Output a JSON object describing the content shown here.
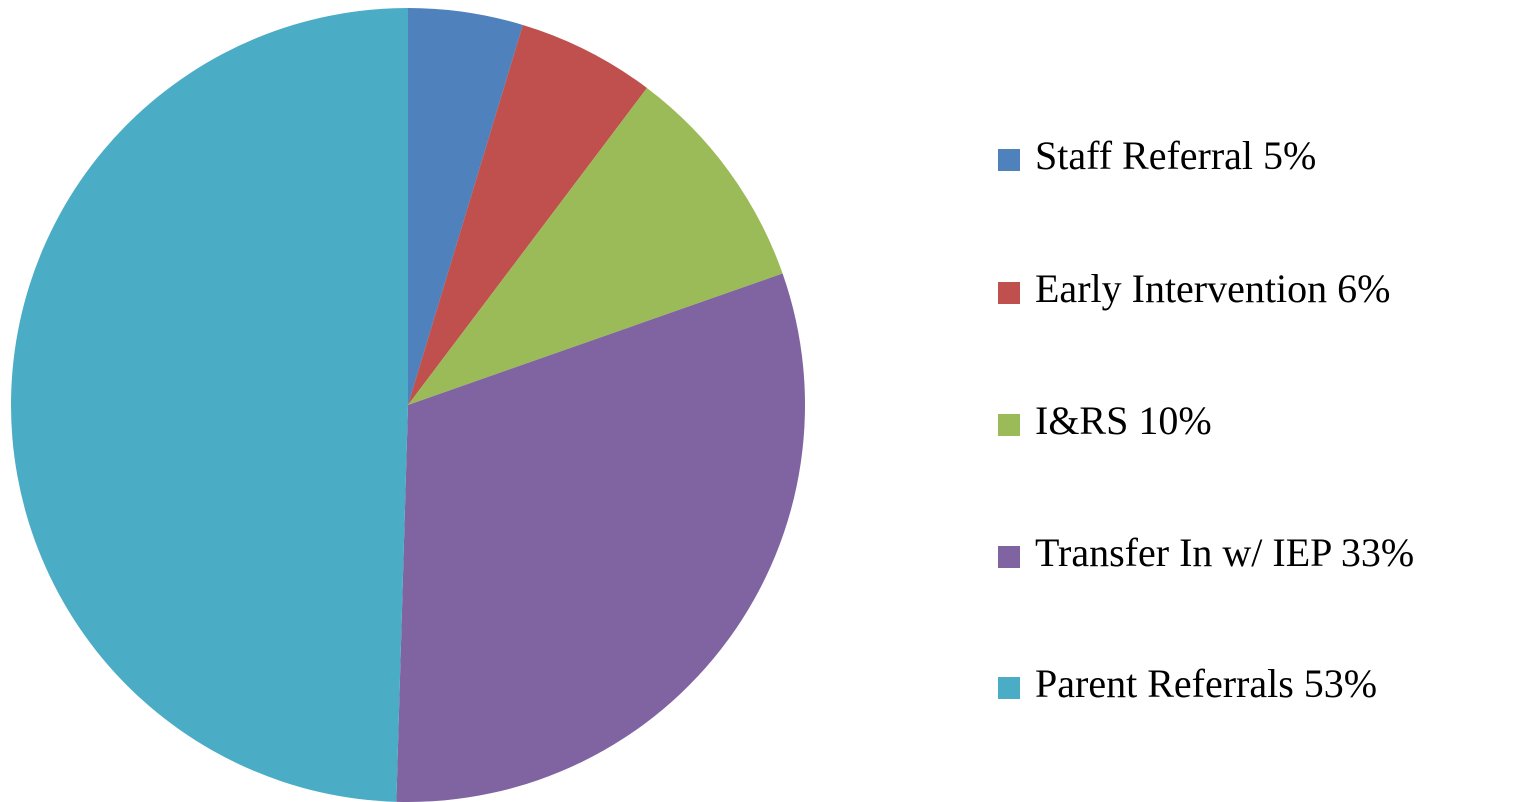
{
  "chart_data": {
    "type": "pie",
    "categories": [
      "Staff Referral 5%",
      "Early Intervention 6%",
      "I&RS 10%",
      "Transfer In w/ IEP 33%",
      "Parent Referrals 53%"
    ],
    "values": [
      5,
      6,
      10,
      33,
      53
    ],
    "colors": [
      "#4f81bd",
      "#c0504d",
      "#9bbb59",
      "#8064a2",
      "#4bacc6"
    ],
    "legend": "right"
  }
}
